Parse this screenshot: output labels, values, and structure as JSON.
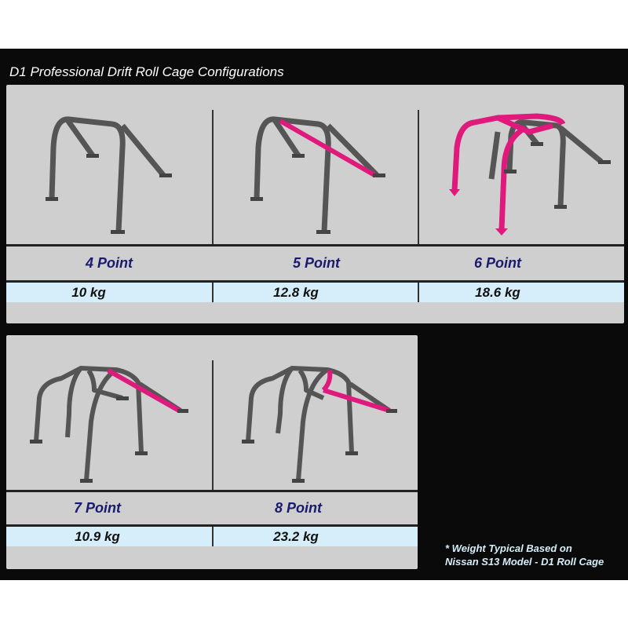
{
  "title": "D1 Professional Drift Roll Cage Configurations",
  "cages": [
    {
      "label": "4 Point",
      "weight": "10 kg"
    },
    {
      "label": "5 Point",
      "weight": "12.8 kg"
    },
    {
      "label": "6 Point",
      "weight": "18.6 kg"
    },
    {
      "label": "7 Point",
      "weight": "10.9 kg"
    },
    {
      "label": "8 Point",
      "weight": "23.2 kg"
    }
  ],
  "note": [
    "* Weight Typical Based on",
    "Nissan S13 Model - D1 Roll Cage"
  ],
  "colors": {
    "cage": "#555555",
    "highlight": "#e0197d",
    "label": "#1a1a6e",
    "weight_row": "#d6eef9"
  }
}
